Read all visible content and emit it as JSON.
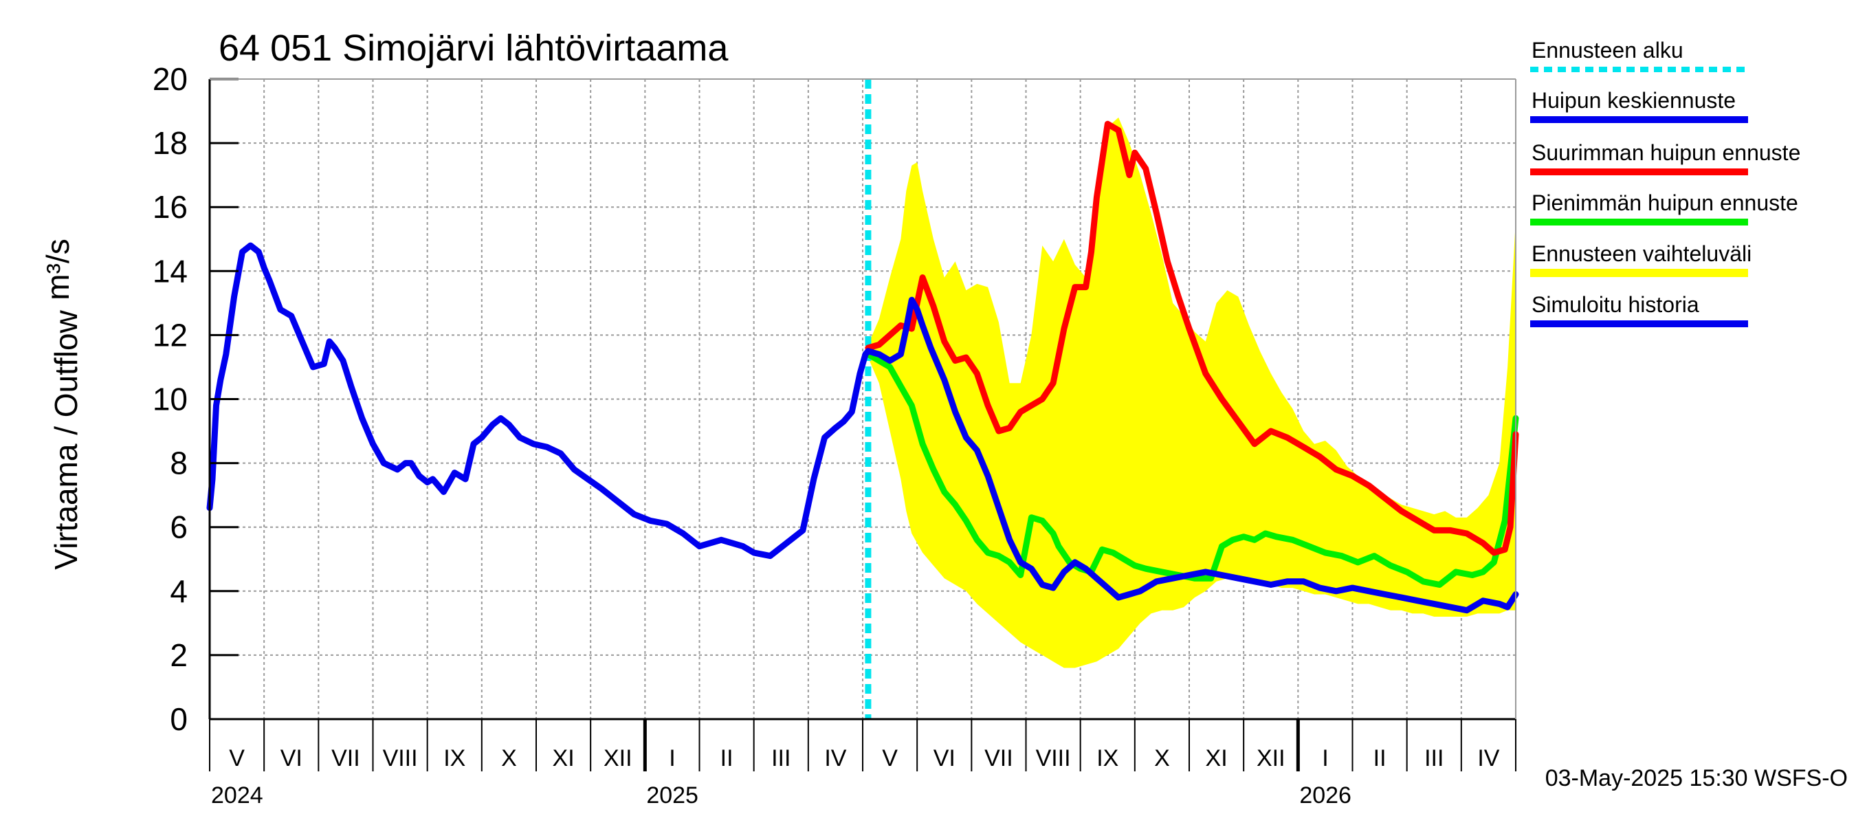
{
  "chart_data": {
    "type": "line",
    "title": "64 051 Simojärvi lähtövirtaama",
    "ylabel_fi": "Virtaama / Outflow",
    "ylabel_unit": "m³/s",
    "ylim": [
      0,
      20
    ],
    "yticks": [
      0,
      2,
      4,
      6,
      8,
      10,
      12,
      14,
      16,
      18,
      20
    ],
    "xlim": [
      0,
      24
    ],
    "months": [
      {
        "label": "V",
        "x": 0.5
      },
      {
        "label": "VI",
        "x": 1.5
      },
      {
        "label": "VII",
        "x": 2.5
      },
      {
        "label": "VIII",
        "x": 3.5
      },
      {
        "label": "IX",
        "x": 4.5
      },
      {
        "label": "X",
        "x": 5.5
      },
      {
        "label": "XI",
        "x": 6.5
      },
      {
        "label": "XII",
        "x": 7.5
      },
      {
        "label": "I",
        "x": 8.5
      },
      {
        "label": "II",
        "x": 9.5
      },
      {
        "label": "III",
        "x": 10.5
      },
      {
        "label": "IV",
        "x": 11.5
      },
      {
        "label": "V",
        "x": 12.5
      },
      {
        "label": "VI",
        "x": 13.5
      },
      {
        "label": "VII",
        "x": 14.5
      },
      {
        "label": "VIII",
        "x": 15.5
      },
      {
        "label": "IX",
        "x": 16.5
      },
      {
        "label": "X",
        "x": 17.5
      },
      {
        "label": "XI",
        "x": 18.5
      },
      {
        "label": "XII",
        "x": 19.5
      },
      {
        "label": "I",
        "x": 20.5
      },
      {
        "label": "II",
        "x": 21.5
      },
      {
        "label": "III",
        "x": 22.5
      },
      {
        "label": "IV",
        "x": 23.5
      }
    ],
    "years": [
      {
        "label": "2024",
        "x": 0
      },
      {
        "label": "2025",
        "x": 8
      },
      {
        "label": "2026",
        "x": 20
      }
    ],
    "year_boundaries": [
      8,
      20
    ],
    "forecast_start_x": 12.1,
    "legend": {
      "forecast_start": "Ennusteen alku",
      "mean_peak": "Huipun keskiennuste",
      "max_peak": "Suurimman huipun ennuste",
      "min_peak": "Pienimmän huipun ennuste",
      "range": "Ennusteen vaihteluväli",
      "history": "Simuloitu historia"
    },
    "footer": "03-May-2025 15:30 WSFS-O",
    "colors": {
      "forecast_start": "#00e5ee",
      "mean_peak": "#0000ee",
      "max_peak": "#ff0000",
      "min_peak": "#00ee00",
      "range": "#ffff00",
      "history": "#0000ee"
    },
    "series": [
      {
        "name": "Simuloitu historia",
        "key": "history",
        "x": [
          0.0,
          0.05,
          0.12,
          0.2,
          0.3,
          0.45,
          0.6,
          0.75,
          0.9,
          1.0,
          1.1,
          1.3,
          1.5,
          1.7,
          1.9,
          2.1,
          2.2,
          2.3,
          2.45,
          2.6,
          2.8,
          3.0,
          3.2,
          3.45,
          3.6,
          3.7,
          3.85,
          4.0,
          4.1,
          4.3,
          4.5,
          4.7,
          4.85,
          5.0,
          5.2,
          5.35,
          5.5,
          5.7,
          5.95,
          6.2,
          6.45,
          6.7,
          6.95,
          7.2,
          7.5,
          7.8,
          8.1,
          8.4,
          8.7,
          9.0,
          9.4,
          9.8,
          10.0,
          10.3,
          10.6,
          10.9,
          11.1,
          11.3,
          11.5,
          11.65,
          11.8,
          11.95,
          12.05,
          12.1
        ],
        "values": [
          6.6,
          7.5,
          9.8,
          10.6,
          11.4,
          13.2,
          14.6,
          14.8,
          14.6,
          14.1,
          13.7,
          12.8,
          12.6,
          11.8,
          11.0,
          11.1,
          11.8,
          11.6,
          11.2,
          10.4,
          9.4,
          8.6,
          8.0,
          7.8,
          8.0,
          8.0,
          7.6,
          7.4,
          7.5,
          7.1,
          7.7,
          7.5,
          8.6,
          8.8,
          9.2,
          9.4,
          9.2,
          8.8,
          8.6,
          8.5,
          8.3,
          7.8,
          7.5,
          7.2,
          6.8,
          6.4,
          6.2,
          6.1,
          5.8,
          5.4,
          5.6,
          5.4,
          5.2,
          5.1,
          5.5,
          5.9,
          7.5,
          8.8,
          9.1,
          9.3,
          9.6,
          10.8,
          11.4,
          11.5
        ]
      },
      {
        "name": "Huipun keskiennuste",
        "key": "mean_peak",
        "x": [
          12.1,
          12.3,
          12.5,
          12.7,
          12.8,
          12.9,
          13.0,
          13.1,
          13.25,
          13.5,
          13.7,
          13.9,
          14.1,
          14.3,
          14.5,
          14.7,
          14.9,
          15.1,
          15.3,
          15.5,
          15.7,
          15.9,
          16.1,
          16.3,
          16.5,
          16.7,
          16.9,
          17.1,
          17.4,
          17.7,
          18.0,
          18.3,
          18.6,
          18.9,
          19.2,
          19.5,
          19.8,
          20.1,
          20.4,
          20.7,
          21.0,
          21.3,
          21.6,
          21.9,
          22.2,
          22.5,
          22.8,
          23.1,
          23.4,
          23.7,
          23.85,
          24.0
        ],
        "values": [
          11.5,
          11.4,
          11.2,
          11.4,
          12.2,
          13.1,
          12.8,
          12.3,
          11.6,
          10.6,
          9.6,
          8.8,
          8.4,
          7.6,
          6.6,
          5.6,
          4.9,
          4.7,
          4.2,
          4.1,
          4.6,
          4.9,
          4.7,
          4.4,
          4.1,
          3.8,
          3.9,
          4.0,
          4.3,
          4.4,
          4.5,
          4.6,
          4.5,
          4.4,
          4.3,
          4.2,
          4.3,
          4.3,
          4.1,
          4.0,
          4.1,
          4.0,
          3.9,
          3.8,
          3.7,
          3.6,
          3.5,
          3.4,
          3.7,
          3.6,
          3.5,
          3.9
        ]
      },
      {
        "name": "Suurimman huipun ennuste",
        "key": "max_peak",
        "x": [
          12.1,
          12.3,
          12.5,
          12.7,
          12.9,
          13.1,
          13.3,
          13.5,
          13.7,
          13.9,
          14.1,
          14.3,
          14.5,
          14.7,
          14.9,
          15.1,
          15.3,
          15.5,
          15.7,
          15.9,
          16.1,
          16.2,
          16.3,
          16.5,
          16.7,
          16.9,
          17.0,
          17.2,
          17.4,
          17.6,
          17.8,
          18.0,
          18.3,
          18.6,
          18.9,
          19.2,
          19.5,
          19.8,
          20.1,
          20.4,
          20.7,
          21.0,
          21.3,
          21.6,
          21.9,
          22.2,
          22.5,
          22.8,
          23.1,
          23.4,
          23.6,
          23.8,
          23.9,
          24.0
        ],
        "values": [
          11.6,
          11.7,
          12.0,
          12.3,
          12.2,
          13.8,
          12.9,
          11.8,
          11.2,
          11.3,
          10.8,
          9.8,
          9.0,
          9.1,
          9.6,
          9.8,
          10.0,
          10.5,
          12.2,
          13.5,
          13.5,
          14.6,
          16.3,
          18.6,
          18.4,
          17.0,
          17.7,
          17.2,
          15.8,
          14.3,
          13.2,
          12.2,
          10.8,
          10.0,
          9.3,
          8.6,
          9.0,
          8.8,
          8.5,
          8.2,
          7.8,
          7.6,
          7.3,
          6.9,
          6.5,
          6.2,
          5.9,
          5.9,
          5.8,
          5.5,
          5.2,
          5.3,
          6.0,
          8.9
        ]
      },
      {
        "name": "Pienimmän huipun ennuste",
        "key": "min_peak",
        "x": [
          12.1,
          12.3,
          12.5,
          12.7,
          12.9,
          13.1,
          13.3,
          13.5,
          13.7,
          13.9,
          14.1,
          14.3,
          14.5,
          14.7,
          14.9,
          15.1,
          15.3,
          15.5,
          15.6,
          15.8,
          16.0,
          16.2,
          16.4,
          16.6,
          16.8,
          17.0,
          17.2,
          17.5,
          17.8,
          18.1,
          18.4,
          18.6,
          18.8,
          19.0,
          19.2,
          19.4,
          19.6,
          19.9,
          20.2,
          20.5,
          20.8,
          21.1,
          21.4,
          21.7,
          22.0,
          22.3,
          22.6,
          22.9,
          23.2,
          23.4,
          23.6,
          23.8,
          24.0
        ],
        "values": [
          11.4,
          11.2,
          11.0,
          10.4,
          9.8,
          8.6,
          7.8,
          7.1,
          6.7,
          6.2,
          5.6,
          5.2,
          5.1,
          4.9,
          4.5,
          6.3,
          6.2,
          5.8,
          5.4,
          4.9,
          4.7,
          4.6,
          5.3,
          5.2,
          5.0,
          4.8,
          4.7,
          4.6,
          4.5,
          4.4,
          4.4,
          5.4,
          5.6,
          5.7,
          5.6,
          5.8,
          5.7,
          5.6,
          5.4,
          5.2,
          5.1,
          4.9,
          5.1,
          4.8,
          4.6,
          4.3,
          4.2,
          4.6,
          4.5,
          4.6,
          4.9,
          6.2,
          9.4
        ]
      }
    ],
    "range_band": {
      "name": "Ennusteen vaihteluväli",
      "x": [
        12.1,
        12.3,
        12.5,
        12.7,
        12.8,
        12.9,
        13.0,
        13.1,
        13.3,
        13.5,
        13.7,
        13.9,
        14.1,
        14.3,
        14.5,
        14.7,
        14.9,
        15.1,
        15.3,
        15.5,
        15.7,
        15.9,
        16.1,
        16.3,
        16.5,
        16.7,
        16.9,
        17.1,
        17.3,
        17.5,
        17.7,
        17.9,
        18.1,
        18.3,
        18.5,
        18.7,
        18.9,
        19.1,
        19.3,
        19.5,
        19.7,
        19.9,
        20.1,
        20.3,
        20.5,
        20.7,
        20.9,
        21.1,
        21.3,
        21.5,
        21.7,
        21.9,
        22.1,
        22.3,
        22.5,
        22.7,
        22.9,
        23.1,
        23.3,
        23.5,
        23.7,
        23.85,
        24.0
      ],
      "upper": [
        11.7,
        12.5,
        13.8,
        15.0,
        16.5,
        17.3,
        17.4,
        16.5,
        15.0,
        13.8,
        14.3,
        13.4,
        13.6,
        13.5,
        12.4,
        10.5,
        10.5,
        12.0,
        14.8,
        14.3,
        15.0,
        14.2,
        13.8,
        16.0,
        18.5,
        18.8,
        18.0,
        17.0,
        15.8,
        14.5,
        13.0,
        12.6,
        12.1,
        11.8,
        13.0,
        13.4,
        13.2,
        12.3,
        11.5,
        10.8,
        10.2,
        9.7,
        9.0,
        8.6,
        8.7,
        8.4,
        7.9,
        7.6,
        7.3,
        7.1,
        6.9,
        6.7,
        6.6,
        6.5,
        6.4,
        6.5,
        6.3,
        6.3,
        6.6,
        7.0,
        8.0,
        11.0,
        15.6
      ],
      "lower": [
        11.3,
        10.5,
        9.0,
        7.5,
        6.5,
        5.8,
        5.5,
        5.2,
        4.8,
        4.4,
        4.2,
        4.0,
        3.6,
        3.3,
        3.0,
        2.7,
        2.4,
        2.2,
        2.0,
        1.8,
        1.6,
        1.6,
        1.7,
        1.8,
        2.0,
        2.2,
        2.6,
        3.0,
        3.3,
        3.4,
        3.4,
        3.5,
        3.8,
        4.0,
        4.3,
        4.4,
        4.5,
        4.4,
        4.3,
        4.2,
        4.1,
        4.1,
        4.0,
        3.9,
        3.9,
        3.8,
        3.7,
        3.6,
        3.6,
        3.5,
        3.4,
        3.4,
        3.3,
        3.3,
        3.2,
        3.2,
        3.2,
        3.2,
        3.3,
        3.3,
        3.3,
        3.4,
        3.4
      ]
    }
  }
}
